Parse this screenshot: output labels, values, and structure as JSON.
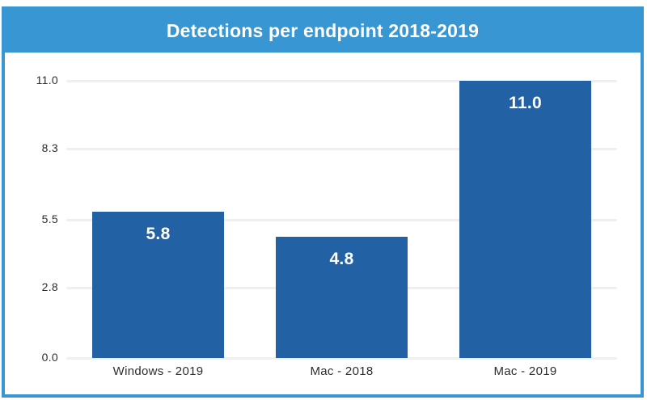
{
  "header": {
    "title": "Detections per endpoint 2018-2019"
  },
  "colors": {
    "accent_blue": "#3897d3",
    "bar_blue": "#2161a4",
    "gridline_gray": "#efefef",
    "axis_text": "#2e2e2e",
    "title_text": "#ffffff",
    "background": "#ffffff"
  },
  "chart_data": {
    "type": "bar",
    "title": "Detections per endpoint 2018-2019",
    "categories": [
      "Windows - 2019",
      "Mac - 2018",
      "Mac - 2019"
    ],
    "values": [
      5.8,
      4.8,
      11.0
    ],
    "value_labels": [
      "5.8",
      "4.8",
      "11.0"
    ],
    "y_tick_values": [
      0.0,
      2.8,
      5.5,
      8.3,
      11.0
    ],
    "y_tick_labels": [
      "0.0",
      "2.8",
      "5.5",
      "8.3",
      "11.0"
    ],
    "ylim": [
      0,
      11
    ],
    "xlabel": "",
    "ylabel": "",
    "grid": "horizontal",
    "legend": "none",
    "bar_label_position": "inside-top"
  }
}
